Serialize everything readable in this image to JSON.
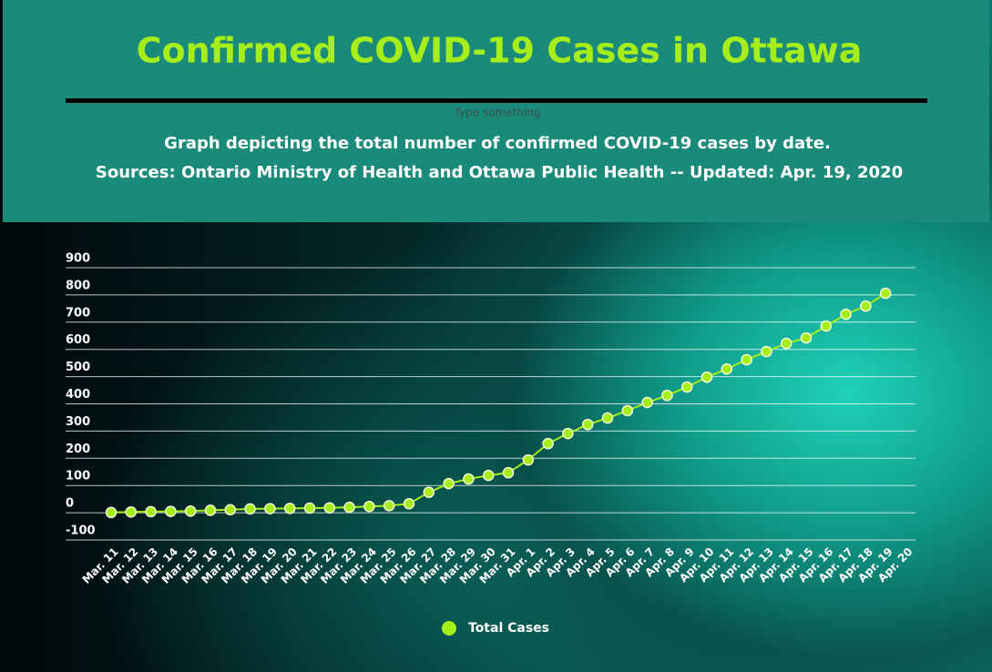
{
  "chart_data": {
    "type": "line",
    "title": "Confirmed COVID-19 Cases in Ottawa",
    "placeholder": "Type something",
    "subtitle": "Graph depicting the total number of confirmed COVID-19 cases by date.",
    "source": "Sources:  Ontario Ministry of Health and Ottawa Public Health -- Updated: Apr. 19, 2020",
    "categories": [
      "Mar. 11",
      "Mar. 12",
      "Mar. 13",
      "Mar. 14",
      "Mar. 15",
      "Mar. 16",
      "Mar. 17",
      "Mar. 18",
      "Mar. 19",
      "Mar. 20",
      "Mar. 21",
      "Mar. 22",
      "Mar. 23",
      "Mar. 24",
      "Mar. 25",
      "Mar. 26",
      "Mar. 27",
      "Mar. 28",
      "Mar. 29",
      "Mar. 30",
      "Mar. 31",
      "Apr. 1",
      "Apr. 2",
      "Apr. 3",
      "Apr. 4",
      "Apr. 5",
      "Apr. 6",
      "Apr. 7",
      "Apr. 8",
      "Apr. 9",
      "Apr. 10",
      "Apr. 11",
      "Apr. 12",
      "Apr. 13",
      "Apr. 14",
      "Apr. 15",
      "Apr. 16",
      "Apr. 17",
      "Apr. 18",
      "Apr. 19",
      "Apr. 20"
    ],
    "series": [
      {
        "name": "Total Cases",
        "color": "#a6ee1a",
        "values": [
          1,
          3,
          4,
          5,
          6,
          9,
          11,
          14,
          15,
          16,
          17,
          18,
          20,
          23,
          26,
          33,
          75,
          107,
          124,
          137,
          147,
          194,
          254,
          291,
          324,
          348,
          375,
          405,
          431,
          462,
          498,
          528,
          562,
          592,
          622,
          642,
          686,
          729,
          759,
          806,
          null
        ]
      }
    ],
    "ylim": [
      -100,
      900
    ],
    "yticks": [
      -100,
      0,
      100,
      200,
      300,
      400,
      500,
      600,
      700,
      800,
      900
    ],
    "grid": true,
    "legend": "bottom"
  }
}
